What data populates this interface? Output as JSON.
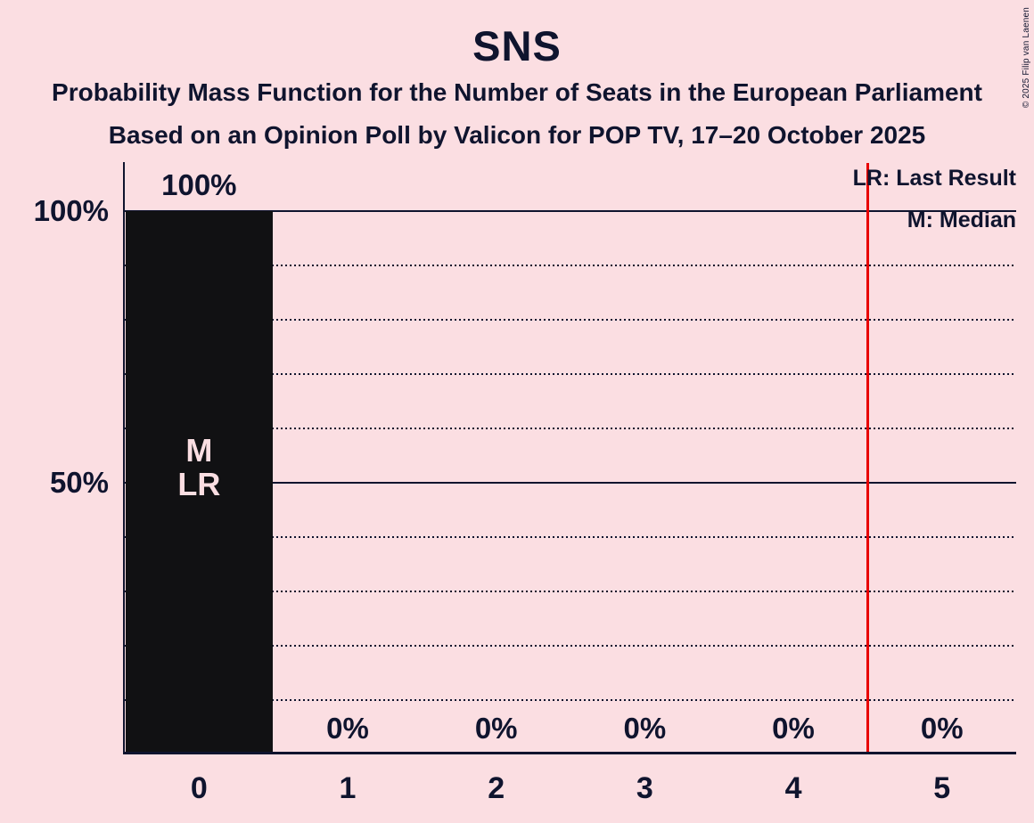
{
  "header": {
    "title": "SNS",
    "subtitle": "Probability Mass Function for the Number of Seats in the European Parliament",
    "subsubtitle": "Based on an Opinion Poll by Valicon for POP TV, 17–20 October 2025"
  },
  "copyright": "© 2025 Filip van Laenen",
  "legend": {
    "last_result": "LR: Last Result",
    "median": "M: Median"
  },
  "colors": {
    "background": "#FBDEE2",
    "ink": "#0F142E",
    "bar": "#111113",
    "bar_label": "#FBDEE2",
    "last_result_line": "#E80000"
  },
  "chart_data": {
    "type": "bar",
    "title": "SNS",
    "subtitle": "Probability Mass Function for the Number of Seats in the European Parliament",
    "source_line": "Based on an Opinion Poll by Valicon for POP TV, 17–20 October 2025",
    "categories": [
      "0",
      "1",
      "2",
      "3",
      "4",
      "5"
    ],
    "values": [
      100,
      0,
      0,
      0,
      0,
      0
    ],
    "value_labels": [
      "100%",
      "0%",
      "0%",
      "0%",
      "0%",
      "0%"
    ],
    "ylim": [
      0,
      100
    ],
    "y_tick_labels": [
      "100%",
      "50%"
    ],
    "y_axis_label_100": "100%",
    "y_axis_label_50": "50%",
    "grid": "horizontal lines every 10%; solid at 100% and 50%, dotted otherwise",
    "legend_position": "top-right",
    "median_seats": "0",
    "last_result_seats": "0",
    "bar_annotation_line1": "M",
    "bar_annotation_line2": "LR",
    "red_line_x": 4.5
  }
}
